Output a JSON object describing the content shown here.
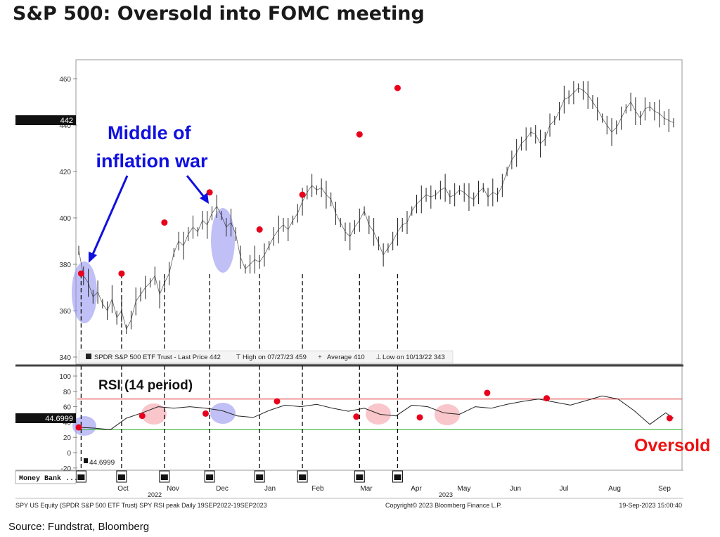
{
  "title": "S&P 500: Oversold into FOMC meeting",
  "source": "Source: Fundstrat, Bloomberg",
  "chart_data": [
    {
      "type": "line",
      "panel": "price",
      "y_ticks": [
        340,
        360,
        380,
        400,
        420,
        440,
        460
      ],
      "ylim": [
        338,
        463
      ],
      "last_price_tag": "442",
      "legend": {
        "last": "SPDR S&P 500 ETF Trust - Last Price 442",
        "high": "High on 07/27/23 459",
        "avg": "Average 410",
        "low": "Low on 10/13/22 343"
      },
      "annotation": "Middle of inflation war",
      "series": [
        {
          "x": [
            0,
            2,
            4,
            6,
            8,
            10,
            12,
            14,
            16,
            18,
            20,
            22,
            24,
            26,
            28,
            30,
            32,
            34,
            36,
            38,
            40,
            42,
            44,
            46,
            48,
            50,
            52,
            54,
            56,
            58,
            60,
            62,
            64,
            66,
            68,
            70,
            72,
            74,
            76,
            78,
            80,
            82,
            84,
            86,
            88,
            90,
            92,
            94,
            96,
            98,
            100,
            102,
            104,
            106,
            108,
            110,
            112,
            114,
            116,
            118,
            120,
            122,
            124,
            126,
            128,
            130,
            132,
            134,
            136,
            138,
            140,
            142,
            144,
            146,
            148,
            150,
            152,
            154,
            156,
            158,
            160,
            162,
            164,
            166,
            168,
            170,
            172,
            174,
            176,
            178,
            180,
            182,
            184,
            186,
            188,
            190,
            192,
            194,
            196,
            198,
            200,
            202,
            204,
            206,
            208,
            210,
            212,
            214,
            216,
            218,
            220,
            222,
            224,
            226,
            228,
            230,
            232,
            234,
            236,
            238,
            240,
            242,
            244,
            246,
            248,
            250
          ],
          "values": [
            386,
            375,
            372,
            366,
            368,
            363,
            360,
            365,
            357,
            360,
            352,
            356,
            364,
            367,
            370,
            372,
            375,
            367,
            372,
            376,
            385,
            390,
            388,
            393,
            396,
            394,
            399,
            397,
            402,
            405,
            401,
            396,
            398,
            393,
            383,
            378,
            380,
            382,
            381,
            384,
            388,
            392,
            395,
            397,
            395,
            399,
            402,
            407,
            411,
            414,
            412,
            413,
            410,
            408,
            402,
            398,
            394,
            392,
            396,
            399,
            403,
            397,
            394,
            389,
            384,
            387,
            390,
            394,
            397,
            398,
            403,
            406,
            408,
            410,
            409,
            410,
            412,
            413,
            409,
            410,
            412,
            411,
            409,
            408,
            411,
            413,
            409,
            411,
            410,
            414,
            420,
            425,
            428,
            432,
            434,
            437,
            436,
            432,
            434,
            440,
            442,
            446,
            451,
            452,
            454,
            456,
            455,
            453,
            450,
            447,
            443,
            440,
            437,
            439,
            443,
            447,
            450,
            446,
            443,
            447,
            448,
            446,
            445,
            443,
            442,
            441
          ]
        }
      ],
      "dots": [
        {
          "x": 1,
          "y": 376
        },
        {
          "x": 18,
          "y": 376
        },
        {
          "x": 36,
          "y": 398
        },
        {
          "x": 55,
          "y": 411
        },
        {
          "x": 76,
          "y": 395
        },
        {
          "x": 94,
          "y": 410
        },
        {
          "x": 118,
          "y": 436
        },
        {
          "x": 134,
          "y": 456
        }
      ]
    },
    {
      "type": "line",
      "panel": "rsi",
      "label": "RSI (14 period)",
      "y_ticks": [
        -20,
        0,
        20,
        40,
        60,
        80,
        100
      ],
      "ylim": [
        -25,
        110
      ],
      "overbought": 70,
      "oversold": 30,
      "last_value_tag": "44.6999",
      "low_label": "44.6999",
      "annotation": "Oversold",
      "series": [
        {
          "x": [
            0,
            4,
            8,
            12,
            16,
            20,
            24,
            28,
            32,
            36,
            40,
            44,
            48,
            52,
            56,
            60,
            64,
            68,
            72,
            76,
            80,
            84,
            88,
            92,
            96,
            100,
            104,
            108,
            112,
            116,
            120,
            124,
            128,
            132,
            136,
            140,
            144,
            148,
            150
          ],
          "values": [
            33,
            32,
            30,
            45,
            52,
            60,
            58,
            60,
            58,
            55,
            48,
            46,
            55,
            62,
            60,
            63,
            58,
            54,
            58,
            50,
            48,
            62,
            60,
            52,
            50,
            60,
            58,
            63,
            67,
            70,
            66,
            62,
            68,
            74,
            70,
            55,
            37,
            52,
            45
          ]
        }
      ],
      "dots": [
        {
          "x": 0,
          "y": 33
        },
        {
          "x": 16,
          "y": 48
        },
        {
          "x": 32,
          "y": 51
        },
        {
          "x": 50,
          "y": 67
        },
        {
          "x": 70,
          "y": 47
        },
        {
          "x": 86,
          "y": 46
        },
        {
          "x": 103,
          "y": 78
        },
        {
          "x": 118,
          "y": 71
        },
        {
          "x": 149,
          "y": 45
        }
      ]
    }
  ],
  "x_axis": {
    "months": [
      "Oct",
      "Nov",
      "Dec",
      "Jan",
      "Feb",
      "Mar",
      "Apr",
      "May",
      "Jun",
      "Jul",
      "Aug",
      "Sep"
    ],
    "years": [
      "2022",
      "2023"
    ]
  },
  "footer": {
    "left": "SPY US Equity (SPDR S&P 500 ETF Trust) SPY RSI peak  Daily 19SEP2022-19SEP2023",
    "center": "Copyright© 2023 Bloomberg Finance L.P.",
    "right": "19-Sep-2023 15:00:40",
    "money_bank": "Money Bank ..."
  },
  "colors": {
    "price_line": "#222222",
    "dot": "#e8001c",
    "highlight_blue": "#8c8cf0",
    "highlight_red": "#f4a0a8",
    "overbought_line": "#e03030",
    "oversold_line": "#20b020",
    "annotation_blue": "#1010e0",
    "oversold_label": "#ee1111"
  }
}
